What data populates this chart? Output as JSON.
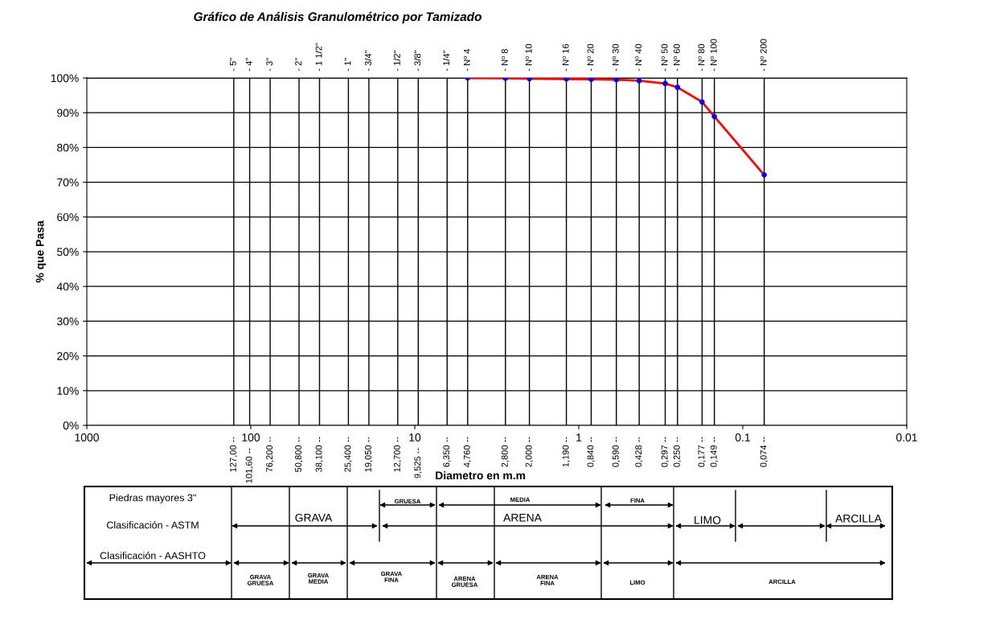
{
  "chart_data": {
    "type": "line",
    "title": "Gráfico de Análisis Granulométrico por Tamizado",
    "xlabel": "Diametro en m.m",
    "ylabel": "% que Pasa",
    "log": "x",
    "x": [
      4.76,
      2.8,
      2.0,
      1.19,
      0.84,
      0.59,
      0.428,
      0.297,
      0.25,
      0.177,
      0.149,
      0.074
    ],
    "series": [
      {
        "color": "#ff0000",
        "marker": "none",
        "values": [
          100,
          99.9,
          99.8,
          99.7,
          99.6,
          99.5,
          99.2,
          98.4,
          97.3,
          93.1,
          88.9,
          72.1
        ]
      },
      {
        "type": "scatter",
        "color": "#0000ff",
        "marker": "circle",
        "values": [
          100,
          99.9,
          99.8,
          99.7,
          99.6,
          99.5,
          99.2,
          98.4,
          97.3,
          93.1,
          88.9,
          72.1
        ]
      }
    ],
    "xlim": [
      1000,
      0.01
    ],
    "xticks": [
      1000,
      100,
      10,
      1,
      0.1,
      0.01
    ],
    "ylim": [
      0,
      100
    ],
    "yticks": [
      {
        "value": 0,
        "label": "0%"
      },
      {
        "value": 10,
        "label": "10%"
      },
      {
        "value": 20,
        "label": "20%"
      },
      {
        "value": 30,
        "label": "30%"
      },
      {
        "value": 40,
        "label": "40%"
      },
      {
        "value": 50,
        "label": "50%"
      },
      {
        "value": 60,
        "label": "60%"
      },
      {
        "value": 70,
        "label": "70%"
      },
      {
        "value": 80,
        "label": "80%"
      },
      {
        "value": 90,
        "label": "90%"
      },
      {
        "value": 100,
        "label": "100%"
      }
    ],
    "ref_lines": [
      {
        "axis": "x",
        "value": 127,
        "label": "127,00 --"
      },
      {
        "axis": "x",
        "value": 101.6,
        "label": "101,60 --"
      },
      {
        "axis": "x",
        "value": 76.2,
        "label": "76,200 --"
      },
      {
        "axis": "x",
        "value": 50.8,
        "label": "50,800 --"
      },
      {
        "axis": "x",
        "value": 38.1,
        "label": "38,100 --"
      },
      {
        "axis": "x",
        "value": 25.4,
        "label": "25,400 --"
      },
      {
        "axis": "x",
        "value": 19.05,
        "label": "19,050 --"
      },
      {
        "axis": "x",
        "value": 12.7,
        "label": "12,700 --"
      },
      {
        "axis": "x",
        "value": 9.525,
        "label": "9,525 --"
      },
      {
        "axis": "x",
        "value": 6.35,
        "label": "6,350 --"
      },
      {
        "axis": "x",
        "value": 4.76,
        "label": "4,760 --"
      },
      {
        "axis": "x",
        "value": 2.8,
        "label": "2,800 --"
      },
      {
        "axis": "x",
        "value": 2.0,
        "label": "2,000 --"
      },
      {
        "axis": "x",
        "value": 1.19,
        "label": "1,190 --"
      },
      {
        "axis": "x",
        "value": 0.84,
        "label": "0,840 --"
      },
      {
        "axis": "x",
        "value": 0.59,
        "label": "0,590 --"
      },
      {
        "axis": "x",
        "value": 0.428,
        "label": "0,428 --"
      },
      {
        "axis": "x",
        "value": 0.297,
        "label": "0,297 --"
      },
      {
        "axis": "x",
        "value": 0.25,
        "label": "0,250 --"
      },
      {
        "axis": "x",
        "value": 0.177,
        "label": "0,177 --"
      },
      {
        "axis": "x",
        "value": 0.149,
        "label": "0,149 --"
      },
      {
        "axis": "x",
        "value": 0.074,
        "label": "0,074 --"
      }
    ],
    "grid": "y",
    "annotations": [
      {
        "text": "- 5\"",
        "x": 127,
        "y": 100
      },
      {
        "text": "- 4\"",
        "x": 101.6,
        "y": 100
      },
      {
        "text": "- 3\"",
        "x": 76.2,
        "y": 100
      },
      {
        "text": "- 2\"",
        "x": 50.8,
        "y": 100
      },
      {
        "text": "- 1 1/2\"",
        "x": 38.1,
        "y": 100
      },
      {
        "text": "- 1\"",
        "x": 25.4,
        "y": 100
      },
      {
        "text": "- 3/4\"",
        "x": 19.05,
        "y": 100
      },
      {
        "text": "- 1/2\"",
        "x": 12.7,
        "y": 100
      },
      {
        "text": "- 3/8\"",
        "x": 9.525,
        "y": 100
      },
      {
        "text": "- 1/4\"",
        "x": 6.35,
        "y": 100
      },
      {
        "text": "- Nº 4",
        "x": 4.76,
        "y": 100
      },
      {
        "text": "- Nº 8",
        "x": 2.8,
        "y": 100
      },
      {
        "text": "- Nº 10",
        "x": 2.0,
        "y": 100
      },
      {
        "text": "- Nº 16",
        "x": 1.19,
        "y": 100
      },
      {
        "text": "- Nº 20",
        "x": 0.84,
        "y": 100
      },
      {
        "text": "- Nº 30",
        "x": 0.59,
        "y": 100
      },
      {
        "text": "- Nº 40",
        "x": 0.428,
        "y": 100
      },
      {
        "text": "- Nº 50",
        "x": 0.297,
        "y": 100
      },
      {
        "text": "- Nº 60",
        "x": 0.25,
        "y": 100
      },
      {
        "text": "- Nº 80",
        "x": 0.177,
        "y": 100
      },
      {
        "text": "- Nº 100",
        "x": 0.149,
        "y": 100
      },
      {
        "text": "- Nº 200",
        "x": 0.074,
        "y": 100
      },
      "Piedras mayores 3\"",
      "Clasificación - ASTM",
      "Clasificación - AASHTO",
      "GRAVA",
      "ARENA",
      "LIMO",
      "ARCILLA",
      "GRUESA",
      "MEDIA",
      "FINA",
      "GRAVA\nGRUESA",
      "GRAVA\nMEDIA",
      "GRAVA\nFINA",
      "ARENA\nGRUESA",
      "ARENA\nFINA",
      "LIMO",
      "ARCILLA"
    ]
  }
}
